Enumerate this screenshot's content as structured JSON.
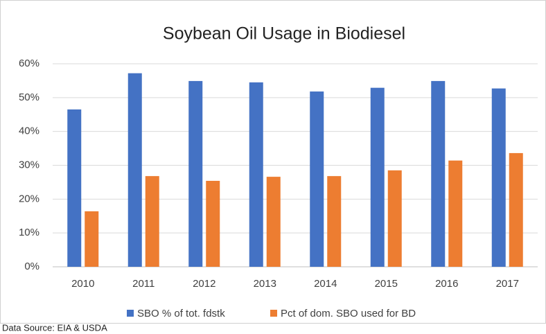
{
  "chart_data": {
    "type": "bar",
    "title": "Soybean Oil Usage in Biodiesel",
    "categories": [
      "2010",
      "2011",
      "2012",
      "2013",
      "2014",
      "2015",
      "2016",
      "2017"
    ],
    "series": [
      {
        "name": "SBO % of tot. fdstk",
        "color": "#4472c4",
        "values": [
          46.5,
          57.2,
          54.9,
          54.5,
          51.8,
          52.9,
          54.9,
          52.7
        ]
      },
      {
        "name": "Pct of dom. SBO used for BD",
        "color": "#ed7d31",
        "values": [
          16.4,
          26.8,
          25.4,
          26.6,
          26.8,
          28.5,
          31.4,
          33.6
        ]
      }
    ],
    "ylim": [
      0,
      60
    ],
    "yticks": [
      {
        "value": 0,
        "label": "0%"
      },
      {
        "value": 10,
        "label": "10%"
      },
      {
        "value": 20,
        "label": "20%"
      },
      {
        "value": 30,
        "label": "30%"
      },
      {
        "value": 40,
        "label": "40%"
      },
      {
        "value": 50,
        "label": "50%"
      },
      {
        "value": 60,
        "label": "60%"
      }
    ],
    "grid": true,
    "legend": "bottom",
    "source": "Data Source: EIA & USDA"
  }
}
